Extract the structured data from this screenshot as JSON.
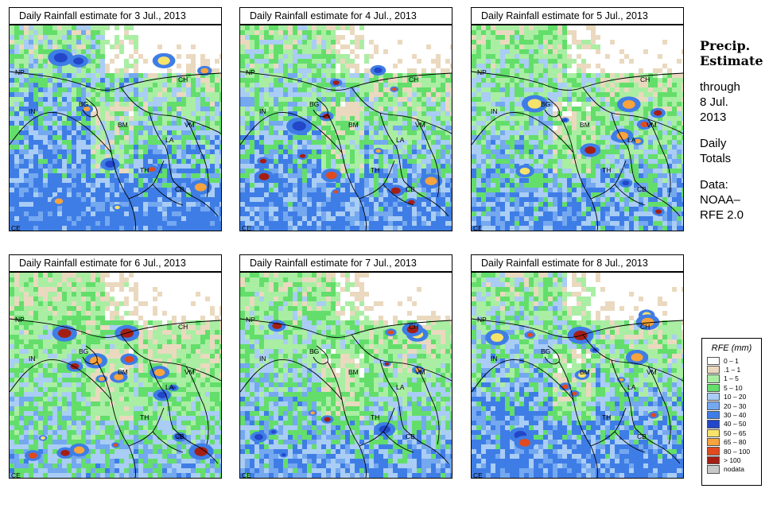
{
  "panels": [
    {
      "title": "Daily Rainfall estimate for  3 Jul., 2013",
      "seed": 31,
      "wet": 0.62
    },
    {
      "title": "Daily Rainfall estimate for  4 Jul., 2013",
      "seed": 47,
      "wet": 0.55
    },
    {
      "title": "Daily Rainfall estimate for  5 Jul., 2013",
      "seed": 59,
      "wet": 0.5
    },
    {
      "title": "Daily Rainfall estimate for  6 Jul., 2013",
      "seed": 73,
      "wet": 0.42
    },
    {
      "title": "Daily Rainfall estimate for  7 Jul., 2013",
      "seed": 89,
      "wet": 0.48
    },
    {
      "title": "Daily Rainfall estimate for  8 Jul., 2013",
      "seed": 97,
      "wet": 0.56
    }
  ],
  "country_labels": [
    {
      "text": "NP",
      "name": "label-nepal"
    },
    {
      "text": "CH",
      "name": "label-china"
    },
    {
      "text": "IN",
      "name": "label-india"
    },
    {
      "text": "BG",
      "name": "label-bangladesh"
    },
    {
      "text": "BM",
      "name": "label-burma"
    },
    {
      "text": "VM",
      "name": "label-vietnam"
    },
    {
      "text": "LA",
      "name": "label-laos"
    },
    {
      "text": "TH",
      "name": "label-thailand"
    },
    {
      "text": "CB",
      "name": "label-cambodia"
    },
    {
      "text": "CE",
      "name": "label-ceylon"
    }
  ],
  "sidebar": {
    "heading1": "Precip.",
    "heading2": "Estimate",
    "line1": "through",
    "line2": "8 Jul.",
    "line3": "2013",
    "line4": "Daily",
    "line5": "Totals",
    "line6": "Data:",
    "line7": "NOAA–",
    "line8": "RFE 2.0"
  },
  "legend": {
    "title": "RFE (mm)",
    "items": [
      {
        "label": "0 – 1",
        "color": "#ffffff"
      },
      {
        "label": ".1 – 1",
        "color": "#ead9bf"
      },
      {
        "label": "1 – 5",
        "color": "#a9eea3"
      },
      {
        "label": "5 – 10",
        "color": "#63de6b"
      },
      {
        "label": "10 – 20",
        "color": "#a9cdf4"
      },
      {
        "label": "20 – 30",
        "color": "#74a8ef"
      },
      {
        "label": "30 – 40",
        "color": "#3f7de6"
      },
      {
        "label": "40 – 50",
        "color": "#2347c8"
      },
      {
        "label": "50 – 65",
        "color": "#f8e36a"
      },
      {
        "label": "65 – 80",
        "color": "#f8a33c"
      },
      {
        "label": "80 – 100",
        "color": "#e04a1e"
      },
      {
        "label": "> 100",
        "color": "#a51e14"
      },
      {
        "label": "nodata",
        "color": "#c8c8c8"
      }
    ]
  }
}
